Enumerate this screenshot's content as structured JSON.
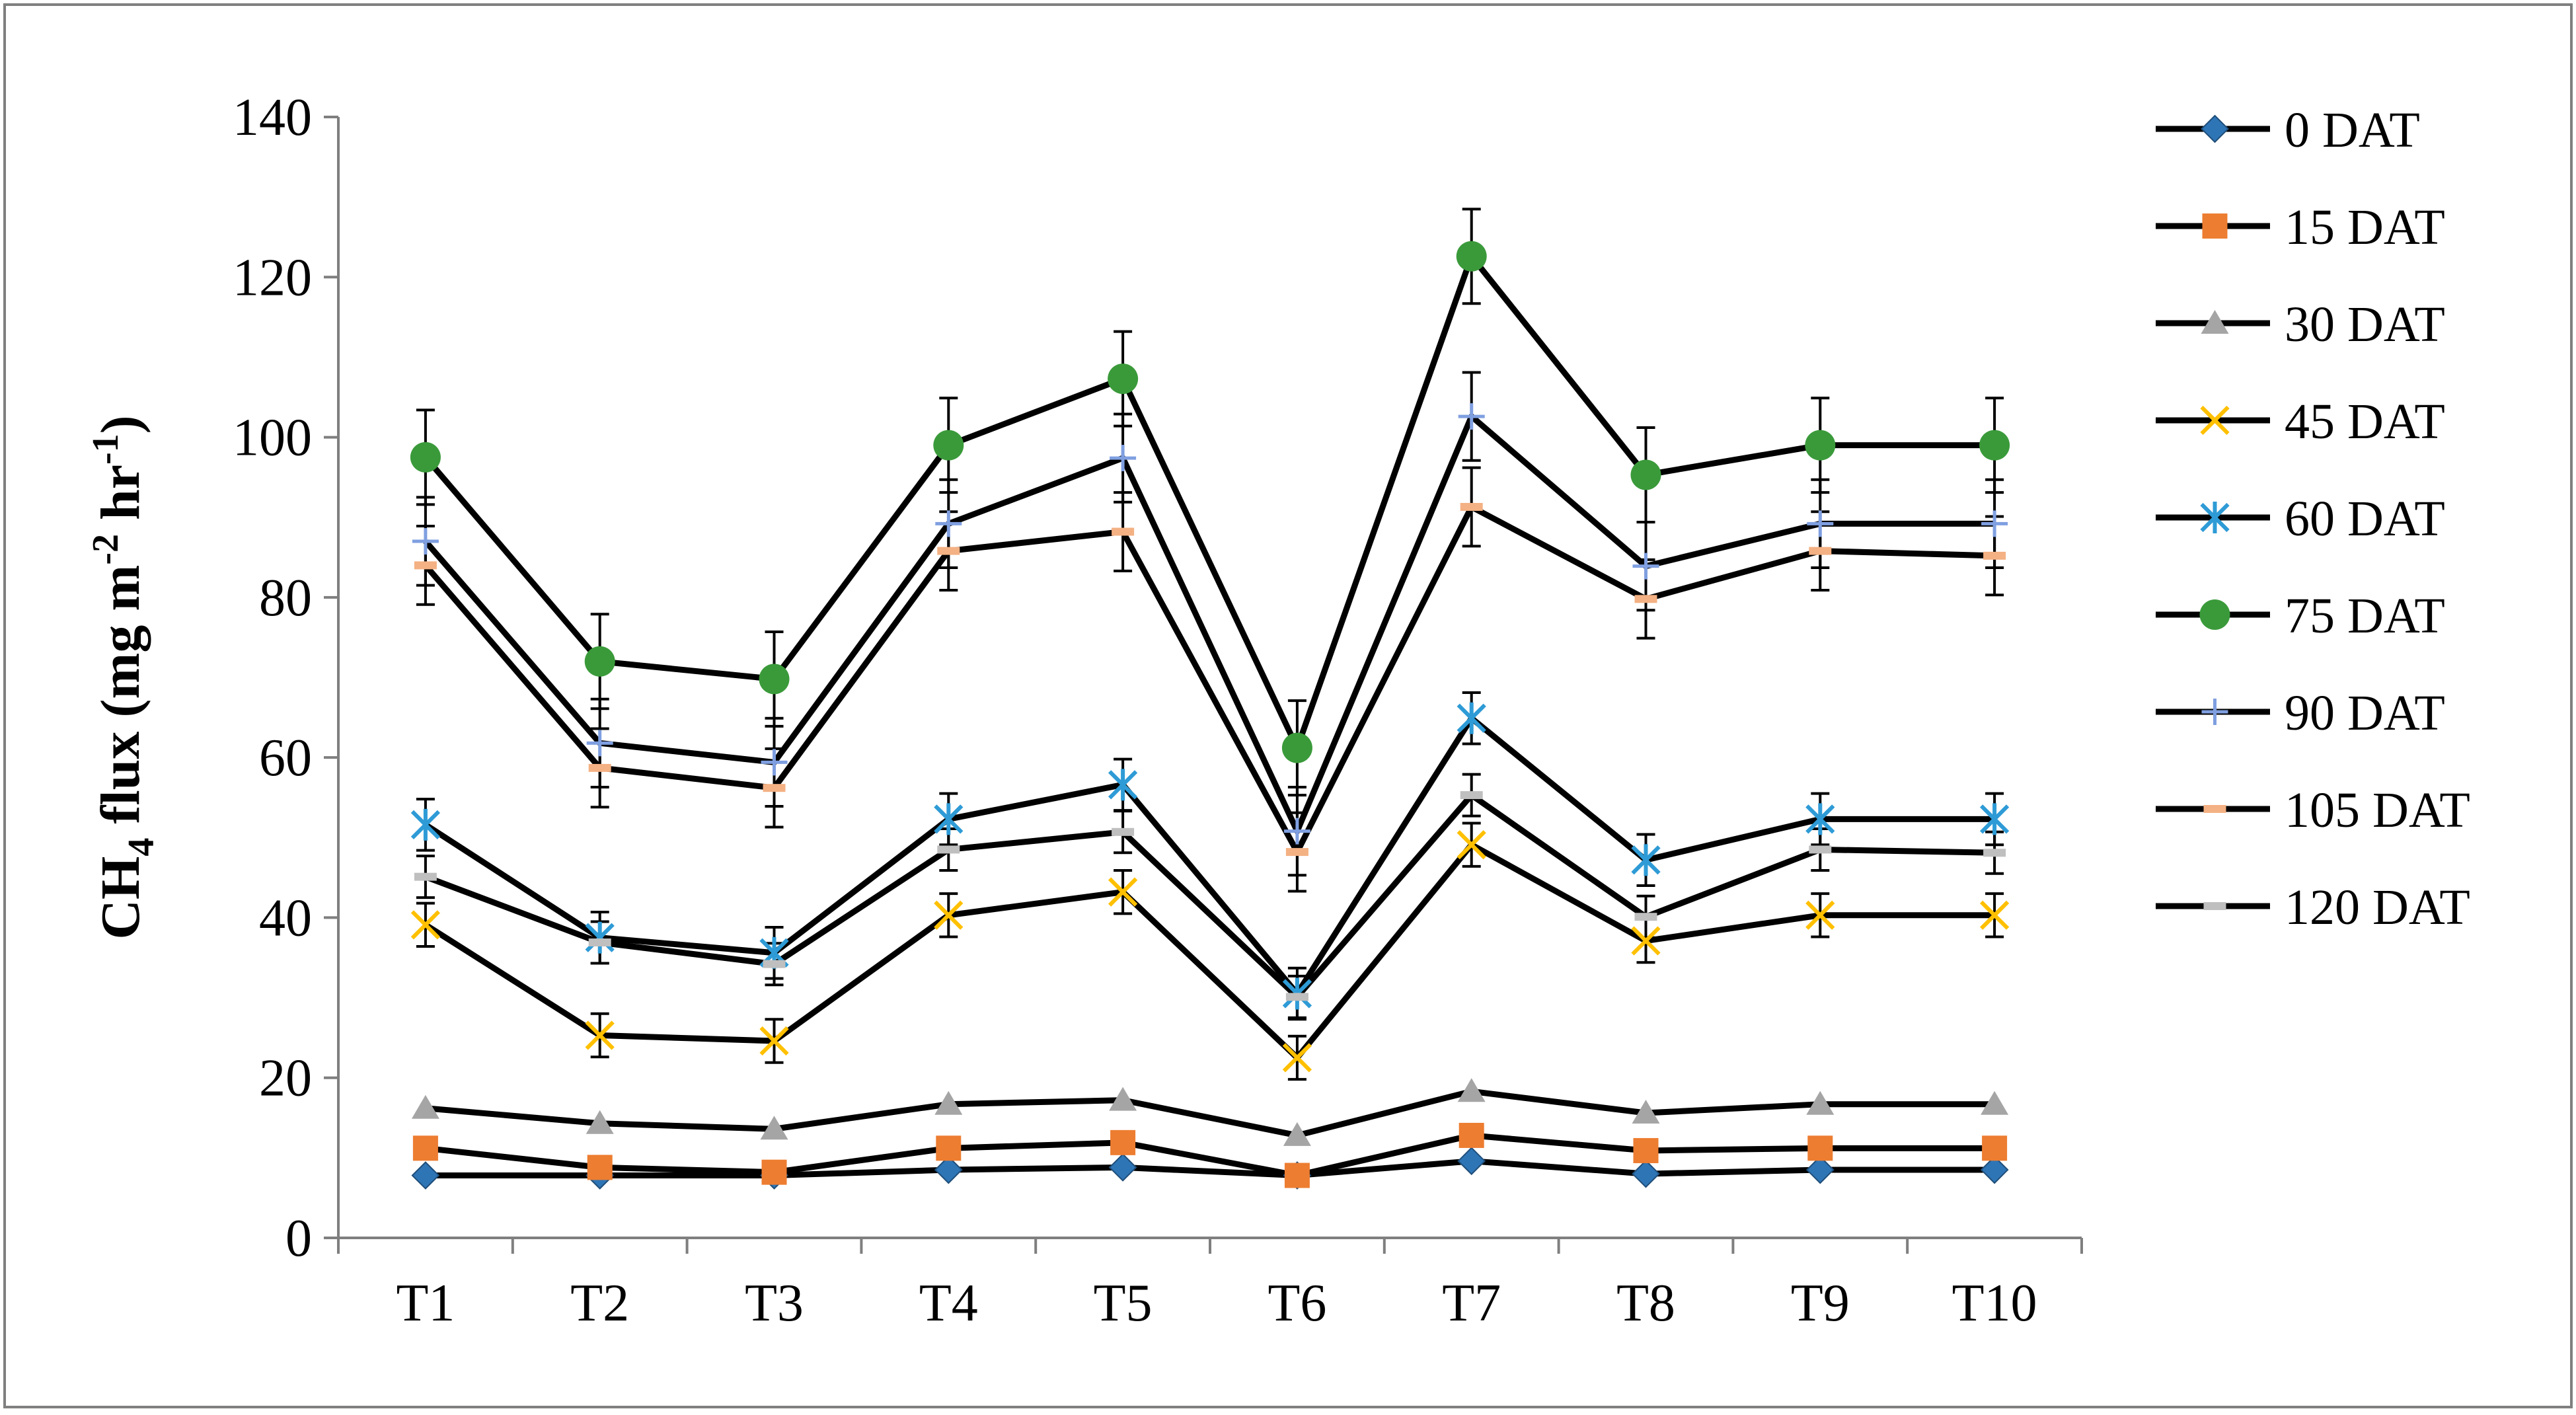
{
  "chart_data": {
    "type": "line",
    "title": "",
    "xlabel": "",
    "ylabel": "CH4 flux (mg m-2 hr-1)",
    "ylabel_parts": {
      "pre": "CH",
      "sub": "4",
      "mid": " flux (mg m",
      "sup1": "-2",
      "mid2": " hr",
      "sup2": "-1",
      "post": ")"
    },
    "categories": [
      "T1",
      "T2",
      "T3",
      "T4",
      "T5",
      "T6",
      "T7",
      "T8",
      "T9",
      "T10"
    ],
    "ylim": [
      0,
      140
    ],
    "yticks": [
      0,
      20,
      40,
      60,
      80,
      100,
      120,
      140
    ],
    "grid": false,
    "legend_position": "right",
    "series": [
      {
        "name": "0 DAT",
        "marker": "diamond",
        "color": "#2e75b6",
        "values": [
          7.8,
          7.8,
          7.8,
          8.5,
          8.8,
          7.8,
          9.6,
          8.0,
          8.5,
          8.5
        ],
        "errors": null
      },
      {
        "name": "15 DAT",
        "marker": "square",
        "color": "#ed7d31",
        "values": [
          11.2,
          8.8,
          8.2,
          11.2,
          11.9,
          7.8,
          12.8,
          10.9,
          11.2,
          11.2
        ],
        "errors": null
      },
      {
        "name": "30 DAT",
        "marker": "triangle",
        "color": "#a5a5a5",
        "values": [
          16.2,
          14.3,
          13.6,
          16.7,
          17.2,
          12.8,
          18.3,
          15.6,
          16.7,
          16.7
        ],
        "errors": null
      },
      {
        "name": "45 DAT",
        "marker": "x",
        "color": "#ffc000",
        "values": [
          39.1,
          25.3,
          24.6,
          40.3,
          43.2,
          22.5,
          49.1,
          37.1,
          40.3,
          40.3
        ],
        "errors": [
          2.7,
          2.7,
          2.7,
          2.7,
          2.7,
          2.7,
          2.7,
          2.7,
          2.7,
          2.7
        ]
      },
      {
        "name": "60 DAT",
        "marker": "asterisk",
        "color": "#2e9bd6",
        "values": [
          51.6,
          37.5,
          35.6,
          52.3,
          56.6,
          30.5,
          64.9,
          47.2,
          52.3,
          52.3
        ],
        "errors": [
          3.2,
          3.2,
          3.2,
          3.2,
          3.2,
          3.2,
          3.2,
          3.2,
          3.2,
          3.2
        ]
      },
      {
        "name": "75 DAT",
        "marker": "circle",
        "color": "#3a9a3a",
        "values": [
          97.5,
          72.0,
          69.8,
          99.0,
          107.3,
          61.2,
          122.6,
          95.3,
          99.0,
          99.0
        ],
        "errors": [
          5.9,
          5.9,
          5.9,
          5.9,
          5.9,
          5.9,
          5.9,
          5.9,
          5.9,
          5.9
        ]
      },
      {
        "name": "90 DAT",
        "marker": "plus",
        "color": "#7f9fe0",
        "values": [
          87.0,
          61.8,
          59.4,
          89.2,
          97.4,
          50.8,
          102.6,
          83.9,
          89.2,
          89.2
        ],
        "errors": [
          5.5,
          5.5,
          5.5,
          5.5,
          5.5,
          5.5,
          5.5,
          5.5,
          5.5,
          5.5
        ]
      },
      {
        "name": "105 DAT",
        "marker": "dash",
        "color": "#f4b183",
        "values": [
          84.0,
          58.7,
          56.2,
          85.8,
          88.2,
          48.2,
          91.3,
          79.8,
          85.8,
          85.2
        ],
        "errors": [
          4.9,
          4.9,
          4.9,
          4.9,
          4.9,
          4.9,
          4.9,
          4.9,
          4.9,
          4.9
        ]
      },
      {
        "name": "120 DAT",
        "marker": "dash",
        "color": "#bfbfbf",
        "values": [
          45.1,
          36.9,
          34.2,
          48.5,
          50.7,
          30.1,
          55.3,
          40.1,
          48.5,
          48.1
        ],
        "errors": [
          2.6,
          2.6,
          2.6,
          2.6,
          2.6,
          2.6,
          2.6,
          2.6,
          2.6,
          2.6
        ]
      }
    ]
  }
}
